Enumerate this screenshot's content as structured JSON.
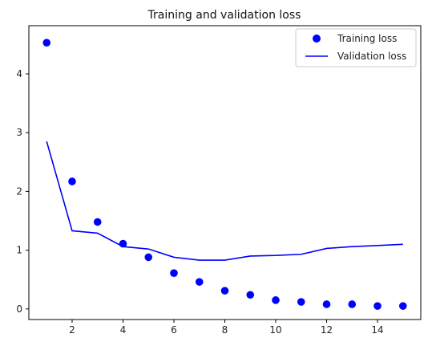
{
  "chart_data": {
    "type": "line",
    "title": "Training and validation loss",
    "xlabel": "",
    "ylabel": "",
    "x": [
      1,
      2,
      3,
      4,
      5,
      6,
      7,
      8,
      9,
      10,
      11,
      12,
      13,
      14,
      15
    ],
    "xlim": [
      0.3,
      15.7
    ],
    "ylim": [
      -0.18,
      4.82
    ],
    "xticks": [
      2,
      4,
      6,
      8,
      10,
      12,
      14
    ],
    "yticks": [
      0,
      1,
      2,
      3,
      4
    ],
    "grid": false,
    "legend_position": "top-right",
    "series": [
      {
        "name": "Training loss",
        "style": "points",
        "color": "#0000ff",
        "values": [
          4.53,
          2.17,
          1.48,
          1.11,
          0.88,
          0.61,
          0.46,
          0.31,
          0.24,
          0.15,
          0.12,
          0.08,
          0.08,
          0.05,
          0.05
        ]
      },
      {
        "name": "Validation loss",
        "style": "line",
        "color": "#0000ff",
        "values": [
          2.85,
          1.33,
          1.29,
          1.06,
          1.02,
          0.88,
          0.83,
          0.83,
          0.9,
          0.91,
          0.93,
          1.03,
          1.06,
          1.08,
          1.1
        ]
      }
    ]
  }
}
